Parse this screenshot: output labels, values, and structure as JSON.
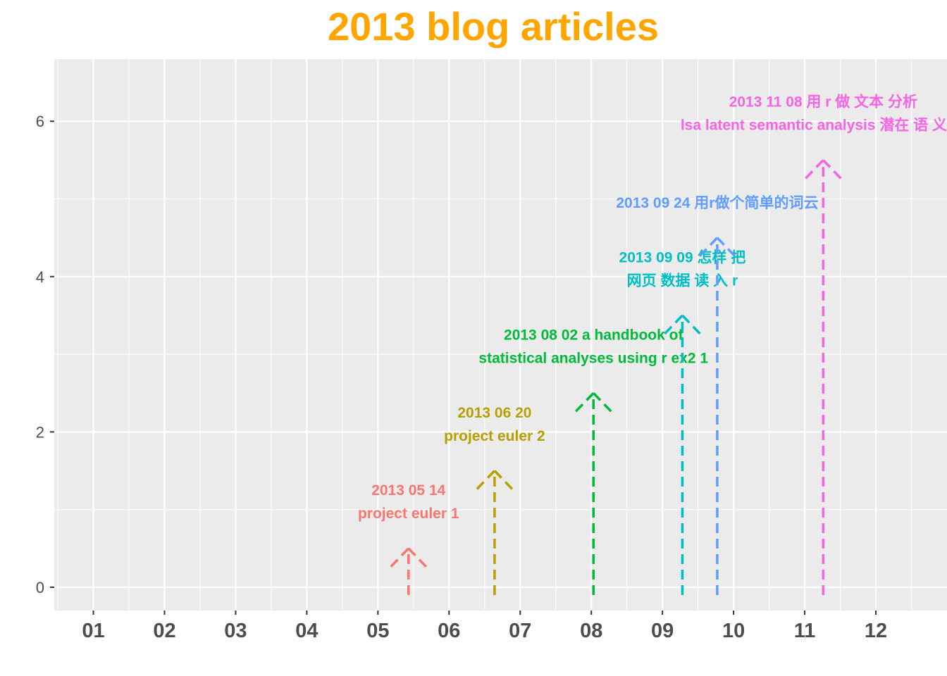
{
  "chart_data": {
    "type": "annotated-timeline",
    "title": "2013 blog articles",
    "title_color": "#FFA500",
    "xlabel": "",
    "ylabel": "",
    "x_ticks": [
      "01",
      "02",
      "03",
      "04",
      "05",
      "06",
      "07",
      "08",
      "09",
      "10",
      "11",
      "12"
    ],
    "y_ticks": [
      0,
      2,
      4,
      6
    ],
    "x_unit": "month of 2013",
    "xlim": [
      0.45,
      13.0
    ],
    "ylim": [
      -0.3,
      6.8
    ],
    "grid": true,
    "panel_background": "#EBEBEB",
    "grid_color": "#FFFFFF",
    "legend": "none",
    "series": [
      {
        "date": "2013-05-14",
        "x": 5.43,
        "y": 0.5,
        "color": "#F8766D",
        "label_lines": [
          "2013 05 14",
          "project euler 1"
        ]
      },
      {
        "date": "2013-06-20",
        "x": 6.64,
        "y": 1.5,
        "color": "#B79F00",
        "label_lines": [
          "2013 06 20",
          "project euler 2"
        ]
      },
      {
        "date": "2013-08-02",
        "x": 8.03,
        "y": 2.5,
        "color": "#00BA38",
        "label_lines": [
          "2013 08 02 a handbook of",
          "statistical analyses using r ex2 1"
        ]
      },
      {
        "date": "2013-09-09",
        "x": 9.28,
        "y": 3.5,
        "color": "#00BFC4",
        "label_lines": [
          "2013 09 09 怎样 把",
          "网页 数据 读 入 r"
        ]
      },
      {
        "date": "2013-09-24",
        "x": 9.77,
        "y": 4.5,
        "color": "#619CFF",
        "label_lines": [
          "2013 09 24 用r做个简单的词云"
        ]
      },
      {
        "date": "2013-11-08",
        "x": 11.26,
        "y": 5.5,
        "color": "#F564E3",
        "label_lines": [
          "2013 11 08 用 r 做 文本 分析",
          "lsa latent semantic analysis 潜在 语 义 分"
        ]
      }
    ]
  }
}
